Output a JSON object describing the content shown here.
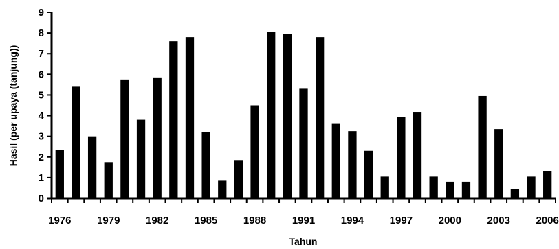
{
  "chart_data": {
    "type": "bar",
    "title": "",
    "xlabel": "Tahun",
    "ylabel": "Hasil (per upaya (tanjung))",
    "ylim": [
      0,
      9
    ],
    "yticks": [
      "0",
      "1",
      "2",
      "3",
      "4",
      "5",
      "6",
      "7",
      "8",
      "9"
    ],
    "categories": [
      "1976",
      "1977",
      "1978",
      "1979",
      "1980",
      "1981",
      "1982",
      "1983",
      "1984",
      "1985",
      "1986",
      "1987",
      "1988",
      "1989",
      "1990",
      "1991",
      "1992",
      "1993",
      "1994",
      "1995",
      "1996",
      "1997",
      "1998",
      "1999",
      "2000",
      "2001",
      "2002",
      "2003",
      "2004",
      "2005",
      "2006"
    ],
    "x_tick_labels": [
      "1976",
      "1979",
      "1982",
      "1985",
      "1988",
      "1991",
      "1994",
      "1997",
      "2000",
      "2003",
      "2006"
    ],
    "values": [
      2.35,
      5.4,
      3.0,
      1.75,
      5.75,
      3.8,
      5.85,
      7.6,
      7.8,
      3.2,
      0.85,
      1.85,
      4.5,
      8.05,
      7.95,
      5.3,
      7.8,
      3.6,
      3.25,
      2.3,
      1.05,
      3.95,
      4.15,
      1.05,
      0.8,
      0.8,
      4.95,
      3.35,
      0.45,
      1.05,
      1.3
    ],
    "bar_color": "#000000",
    "grid": false,
    "legend": "none"
  }
}
